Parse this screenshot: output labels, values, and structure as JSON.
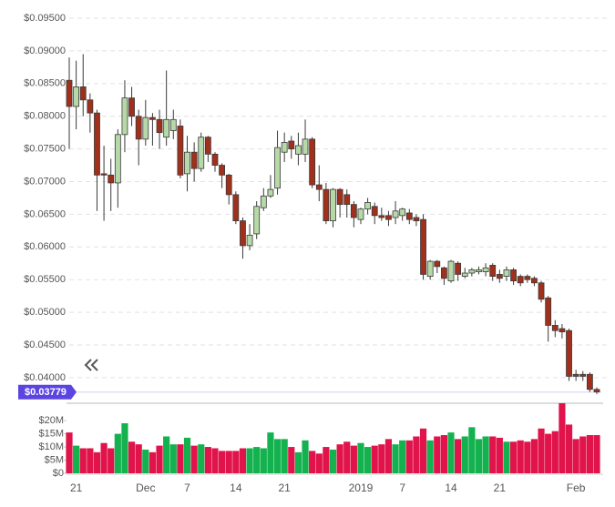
{
  "chart_data": {
    "type": "candlestick",
    "categories": [
      null,
      "21",
      null,
      null,
      null,
      null,
      null,
      null,
      null,
      null,
      null,
      "Dec",
      null,
      null,
      null,
      null,
      null,
      "7",
      null,
      null,
      null,
      null,
      null,
      null,
      "14",
      null,
      null,
      null,
      null,
      null,
      null,
      "21",
      null,
      null,
      null,
      null,
      null,
      null,
      null,
      null,
      null,
      null,
      "2019",
      null,
      null,
      null,
      null,
      null,
      "7",
      null,
      null,
      null,
      null,
      null,
      null,
      "14",
      null,
      null,
      null,
      null,
      null,
      null,
      "21",
      null,
      null,
      null,
      null,
      null,
      null,
      null,
      null,
      null,
      null,
      "Feb",
      null,
      null,
      null
    ],
    "open": [
      0.0855,
      0.0815,
      0.0845,
      0.0825,
      0.0805,
      0.0712,
      0.071,
      0.0698,
      0.0772,
      0.0828,
      0.08,
      0.0765,
      0.0798,
      0.0795,
      0.0768,
      0.0778,
      0.0785,
      0.0712,
      0.0745,
      0.072,
      0.0768,
      0.0742,
      0.0725,
      0.071,
      0.068,
      0.064,
      0.0602,
      0.062,
      0.066,
      0.0678,
      0.069,
      0.0745,
      0.0762,
      0.0742,
      0.0742,
      0.0765,
      0.0695,
      0.0688,
      0.064,
      0.0688,
      0.068,
      0.0665,
      0.0642,
      0.0658,
      0.0662,
      0.0648,
      0.0648,
      0.0645,
      0.0648,
      0.0652,
      0.0645,
      0.0642,
      0.0555,
      0.0578,
      0.0568,
      0.0548,
      0.0575,
      0.0555,
      0.056,
      0.0562,
      0.0562,
      0.0572,
      0.0558,
      0.0555,
      0.0565,
      0.0555,
      0.0555,
      0.0552,
      0.0545,
      0.0522,
      0.048,
      0.0475,
      0.0472,
      0.0405,
      0.0405,
      0.0405,
      0.0382
    ],
    "high": [
      0.089,
      0.0885,
      0.0895,
      0.0835,
      0.081,
      0.0755,
      0.0735,
      0.078,
      0.0855,
      0.0845,
      0.081,
      0.0825,
      0.0805,
      0.081,
      0.087,
      0.081,
      0.0795,
      0.077,
      0.076,
      0.0775,
      0.077,
      0.0745,
      0.0728,
      0.0712,
      0.0685,
      0.0645,
      0.0635,
      0.067,
      0.069,
      0.071,
      0.0778,
      0.0775,
      0.077,
      0.0775,
      0.0795,
      0.0768,
      0.0725,
      0.0698,
      0.069,
      0.069,
      0.0688,
      0.067,
      0.066,
      0.0675,
      0.0668,
      0.066,
      0.0655,
      0.067,
      0.066,
      0.0658,
      0.065,
      0.065,
      0.058,
      0.058,
      0.057,
      0.058,
      0.0578,
      0.0568,
      0.0568,
      0.057,
      0.0575,
      0.0575,
      0.0565,
      0.057,
      0.0568,
      0.0558,
      0.0558,
      0.0555,
      0.0548,
      0.0525,
      0.0488,
      0.0482,
      0.0475,
      0.0412,
      0.041,
      0.0408,
      0.0385
    ],
    "low": [
      0.075,
      0.078,
      0.08,
      0.0775,
      0.0655,
      0.064,
      0.0655,
      0.066,
      0.0745,
      0.0785,
      0.0725,
      0.0755,
      0.0755,
      0.075,
      0.0755,
      0.0765,
      0.0705,
      0.0685,
      0.07,
      0.0715,
      0.073,
      0.0715,
      0.069,
      0.0665,
      0.0635,
      0.0582,
      0.0595,
      0.0612,
      0.0655,
      0.0675,
      0.068,
      0.073,
      0.0735,
      0.0725,
      0.073,
      0.069,
      0.067,
      0.0635,
      0.063,
      0.0645,
      0.0645,
      0.063,
      0.0635,
      0.065,
      0.0635,
      0.064,
      0.0632,
      0.0635,
      0.064,
      0.0635,
      0.0632,
      0.055,
      0.055,
      0.056,
      0.0542,
      0.0545,
      0.0548,
      0.0552,
      0.0555,
      0.0558,
      0.0555,
      0.0548,
      0.0545,
      0.0548,
      0.0542,
      0.054,
      0.0545,
      0.054,
      0.0515,
      0.0455,
      0.0462,
      0.046,
      0.0395,
      0.0395,
      0.0395,
      0.0378,
      0.0375
    ],
    "close": [
      0.0815,
      0.0845,
      0.0825,
      0.0805,
      0.071,
      0.071,
      0.0698,
      0.0772,
      0.0828,
      0.08,
      0.0765,
      0.0798,
      0.0795,
      0.0775,
      0.0795,
      0.0795,
      0.071,
      0.0745,
      0.072,
      0.0768,
      0.0742,
      0.0725,
      0.071,
      0.068,
      0.064,
      0.0602,
      0.0618,
      0.0662,
      0.0678,
      0.0688,
      0.0752,
      0.076,
      0.075,
      0.0755,
      0.0765,
      0.0695,
      0.0688,
      0.064,
      0.0688,
      0.0665,
      0.0665,
      0.0645,
      0.0658,
      0.0668,
      0.0648,
      0.0645,
      0.0642,
      0.0655,
      0.0658,
      0.0642,
      0.064,
      0.0558,
      0.0578,
      0.057,
      0.0552,
      0.0578,
      0.0558,
      0.056,
      0.0565,
      0.0565,
      0.0568,
      0.0555,
      0.0552,
      0.0565,
      0.0548,
      0.0545,
      0.055,
      0.0545,
      0.052,
      0.048,
      0.0472,
      0.047,
      0.0402,
      0.0402,
      0.0402,
      0.0382,
      0.0378
    ],
    "up_color": "#b7d9a8",
    "down_color": "#a0301c",
    "outline_color": "#3a3a3a",
    "ylim": [
      0.0365,
      0.0957
    ],
    "yticks": [
      {
        "value": 0.04,
        "label": "$0.04000"
      },
      {
        "value": 0.045,
        "label": "$0.04500"
      },
      {
        "value": 0.05,
        "label": "$0.05000"
      },
      {
        "value": 0.055,
        "label": "$0.05500"
      },
      {
        "value": 0.06,
        "label": "$0.06000"
      },
      {
        "value": 0.065,
        "label": "$0.06500"
      },
      {
        "value": 0.07,
        "label": "$0.07000"
      },
      {
        "value": 0.075,
        "label": "$0.07500"
      },
      {
        "value": 0.08,
        "label": "$0.08000"
      },
      {
        "value": 0.085,
        "label": "$0.08500"
      },
      {
        "value": 0.09,
        "label": "$0.09000"
      },
      {
        "value": 0.095,
        "label": "$0.09500"
      }
    ],
    "grid": true,
    "last_price": {
      "value": 0.03779,
      "label": "$0.03779"
    },
    "last_price_color": "#5b45e0",
    "volume": {
      "type": "bar",
      "values": [
        15500000,
        10500000,
        9500000,
        9500000,
        8000000,
        11500000,
        9500000,
        15000000,
        19000000,
        12000000,
        11000000,
        9000000,
        8000000,
        10500000,
        14000000,
        11000000,
        11000000,
        13500000,
        10500000,
        11000000,
        10000000,
        9500000,
        8500000,
        8500000,
        8500000,
        9500000,
        9500000,
        10000000,
        9500000,
        15500000,
        13000000,
        13000000,
        10000000,
        8000000,
        12500000,
        8500000,
        7500000,
        10000000,
        9000000,
        11000000,
        12000000,
        10500000,
        11500000,
        10000000,
        10500000,
        11000000,
        13000000,
        11000000,
        12500000,
        12500000,
        14000000,
        17000000,
        12500000,
        14000000,
        14500000,
        15500000,
        13000000,
        14000000,
        17500000,
        13000000,
        14000000,
        14000000,
        13500000,
        12000000,
        12000000,
        12500000,
        12000000,
        13000000,
        17000000,
        15000000,
        16000000,
        26600000,
        18500000,
        13000000,
        14000000,
        14500000,
        14500000
      ],
      "up_color": "#14b14f",
      "down_color": "#e0134a",
      "ylim": [
        0,
        26600000
      ],
      "yticks": [
        {
          "value": 0,
          "label": "$0"
        },
        {
          "value": 5000000,
          "label": "$5M"
        },
        {
          "value": 10000000,
          "label": "$10M"
        },
        {
          "value": 15000000,
          "label": "$15M"
        },
        {
          "value": 20000000,
          "label": "$20M"
        }
      ]
    }
  }
}
